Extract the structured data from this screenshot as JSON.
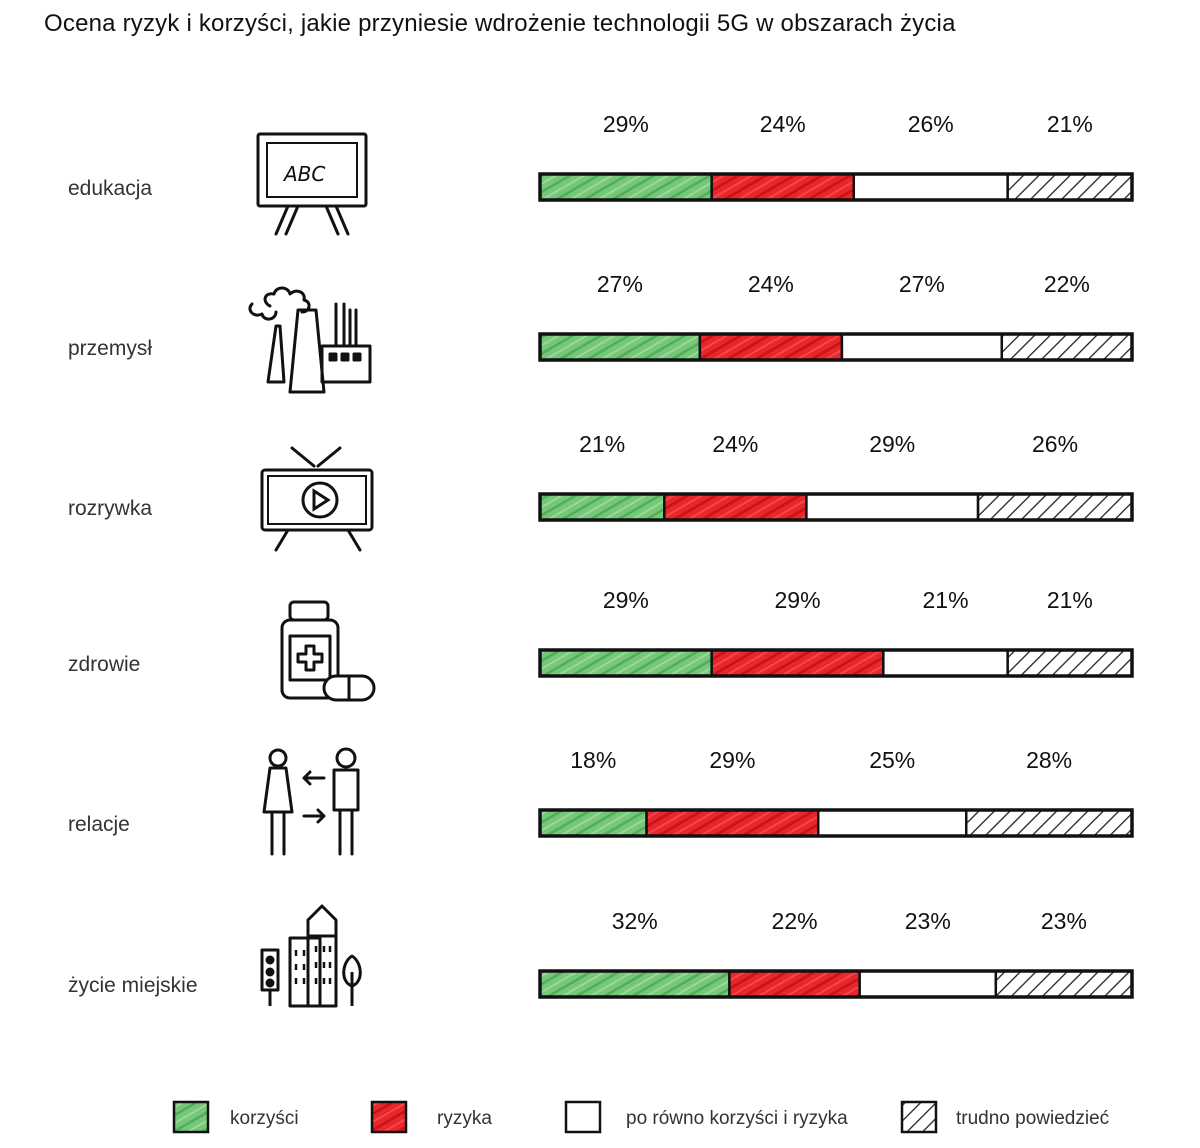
{
  "title": "Ocena ryzyk i korzyści, jakie przyniesie wdrożenie technologii 5G w obszarach życia",
  "chart_data": {
    "type": "bar",
    "stacked": true,
    "orientation": "horizontal",
    "unit": "%",
    "categories": [
      "edukacja",
      "przemysł",
      "rozrywka",
      "zdrowie",
      "relacje",
      "życie miejskie"
    ],
    "category_icons": [
      "blackboard-icon",
      "factory-icon",
      "tv-icon",
      "medicine-icon",
      "people-icon",
      "city-icon"
    ],
    "series": [
      {
        "name": "korzyści",
        "color": "#6cc071",
        "pattern": "solid",
        "values": [
          29,
          27,
          21,
          29,
          18,
          32
        ]
      },
      {
        "name": "ryzyka",
        "color": "#e8262b",
        "pattern": "solid",
        "values": [
          24,
          24,
          24,
          29,
          29,
          22
        ]
      },
      {
        "name": "po równo korzyści i ryzyka",
        "color": "#ffffff",
        "pattern": "blank",
        "values": [
          26,
          27,
          29,
          21,
          25,
          23
        ]
      },
      {
        "name": "trudno powiedzieć",
        "color": "#222222",
        "pattern": "hatch",
        "values": [
          21,
          22,
          26,
          21,
          28,
          23
        ]
      }
    ],
    "legend_position": "bottom"
  }
}
